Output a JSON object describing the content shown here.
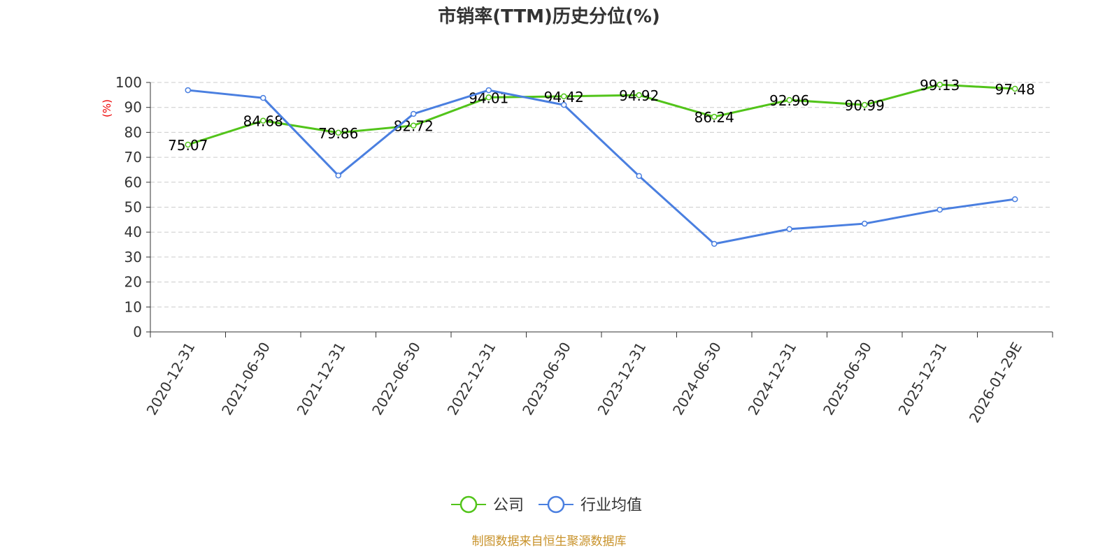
{
  "chart_data": {
    "type": "line",
    "title": "市销率(TTM)历史分位(%)",
    "ylabel": "(%)",
    "xlabel": "",
    "ylim": [
      0,
      100
    ],
    "yticks": [
      0,
      10,
      20,
      30,
      40,
      50,
      60,
      70,
      80,
      90,
      100
    ],
    "grid": true,
    "legend_position": "bottom",
    "categories": [
      "2020-12-31",
      "2021-06-30",
      "2021-12-31",
      "2022-06-30",
      "2022-12-31",
      "2023-06-30",
      "2023-12-31",
      "2024-06-30",
      "2024-12-31",
      "2025-06-30",
      "2025-12-31",
      "2026-01-29E"
    ],
    "series": [
      {
        "name": "公司",
        "color": "#52c41a",
        "show_labels": true,
        "values": [
          75.07,
          84.68,
          79.86,
          82.72,
          94.01,
          94.42,
          94.92,
          86.24,
          92.96,
          90.99,
          99.13,
          97.48
        ]
      },
      {
        "name": "行业均值",
        "color": "#4a7fe0",
        "show_labels": false,
        "values": [
          96.9,
          93.8,
          62.7,
          87.4,
          96.9,
          91.0,
          62.5,
          35.3,
          41.2,
          43.4,
          49.0,
          53.2
        ]
      }
    ],
    "source": "制图数据来自恒生聚源数据库"
  }
}
